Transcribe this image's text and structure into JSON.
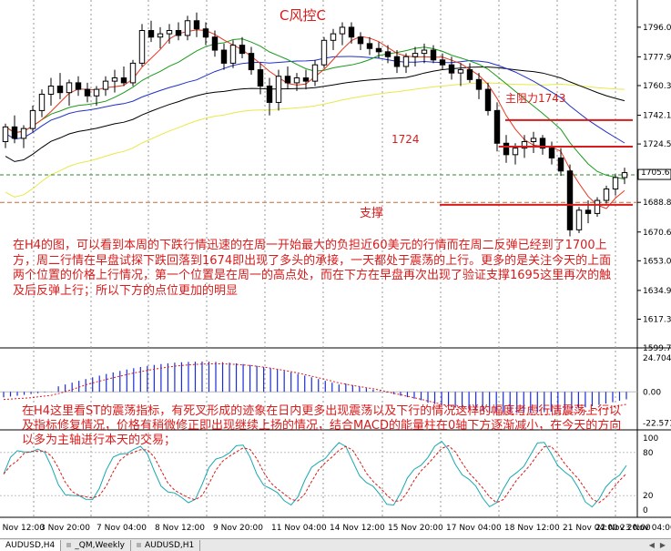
{
  "chart_data": [
    {
      "type": "candlestick",
      "symbol": "AUDUSD",
      "timeframe": "H4",
      "price_axis_ticks": [
        1796.05,
        1777.9,
        1760.3,
        1742.15,
        1724.55,
        1706.4,
        1688.8,
        1670.65,
        1653.05,
        1634.9,
        1617.3,
        1599.7
      ],
      "current_price": "1705.61",
      "ylim": [
        1599.7,
        1806.0
      ],
      "x_ticks": [
        "2 Nov 12:00",
        "3 Nov 20:00",
        "7 Nov 04:00",
        "8 Nov 12:00",
        "9 Nov 20:00",
        "11 Nov 04:00",
        "14 Nov 12:00",
        "15 Nov 20:00",
        "17 Nov 04:00",
        "18 Nov 12:00",
        "21 Nov 04:00",
        "22 Nov 20:00",
        "23 Nov 04:00"
      ],
      "candles": [
        [
          1726,
          1737,
          1722,
          1735
        ],
        [
          1735,
          1742,
          1725,
          1728
        ],
        [
          1728,
          1736,
          1722,
          1734
        ],
        [
          1734,
          1748,
          1732,
          1745
        ],
        [
          1745,
          1758,
          1741,
          1755
        ],
        [
          1755,
          1765,
          1748,
          1760
        ],
        [
          1760,
          1768,
          1752,
          1756
        ],
        [
          1756,
          1764,
          1748,
          1762
        ],
        [
          1762,
          1766,
          1754,
          1758
        ],
        [
          1758,
          1762,
          1750,
          1754
        ],
        [
          1754,
          1760,
          1748,
          1758
        ],
        [
          1758,
          1766,
          1754,
          1763
        ],
        [
          1763,
          1770,
          1756,
          1765
        ],
        [
          1765,
          1772,
          1760,
          1762
        ],
        [
          1762,
          1776,
          1760,
          1774
        ],
        [
          1774,
          1798,
          1772,
          1794
        ],
        [
          1794,
          1800,
          1787,
          1790
        ],
        [
          1790,
          1796,
          1783,
          1792
        ],
        [
          1792,
          1798,
          1786,
          1794
        ],
        [
          1794,
          1799,
          1788,
          1791
        ],
        [
          1791,
          1803,
          1788,
          1800
        ],
        [
          1800,
          1805,
          1790,
          1795
        ],
        [
          1795,
          1799,
          1785,
          1790
        ],
        [
          1790,
          1794,
          1778,
          1782
        ],
        [
          1782,
          1786,
          1770,
          1774
        ],
        [
          1774,
          1788,
          1771,
          1785
        ],
        [
          1785,
          1790,
          1777,
          1780
        ],
        [
          1780,
          1784,
          1767,
          1770
        ],
        [
          1770,
          1774,
          1755,
          1760
        ],
        [
          1760,
          1765,
          1742,
          1750
        ],
        [
          1750,
          1770,
          1745,
          1766
        ],
        [
          1766,
          1772,
          1758,
          1762
        ],
        [
          1762,
          1768,
          1757,
          1765
        ],
        [
          1765,
          1770,
          1758,
          1763
        ],
        [
          1763,
          1776,
          1760,
          1773
        ],
        [
          1773,
          1790,
          1771,
          1788
        ],
        [
          1788,
          1795,
          1782,
          1792
        ],
        [
          1792,
          1799,
          1785,
          1796
        ],
        [
          1796,
          1799,
          1786,
          1790
        ],
        [
          1790,
          1793,
          1782,
          1786
        ],
        [
          1786,
          1790,
          1779,
          1783
        ],
        [
          1783,
          1787,
          1777,
          1781
        ],
        [
          1781,
          1785,
          1774,
          1778
        ],
        [
          1778,
          1782,
          1768,
          1772
        ],
        [
          1772,
          1780,
          1768,
          1778
        ],
        [
          1778,
          1784,
          1772,
          1780
        ],
        [
          1780,
          1786,
          1774,
          1782
        ],
        [
          1782,
          1785,
          1774,
          1776
        ],
        [
          1776,
          1780,
          1770,
          1773
        ],
        [
          1773,
          1778,
          1764,
          1768
        ],
        [
          1768,
          1774,
          1760,
          1770
        ],
        [
          1770,
          1774,
          1762,
          1764
        ],
        [
          1764,
          1768,
          1752,
          1758
        ],
        [
          1758,
          1762,
          1742,
          1745
        ],
        [
          1745,
          1750,
          1720,
          1725
        ],
        [
          1725,
          1730,
          1713,
          1718
        ],
        [
          1718,
          1725,
          1712,
          1722
        ],
        [
          1722,
          1730,
          1716,
          1726
        ],
        [
          1726,
          1732,
          1719,
          1728
        ],
        [
          1728,
          1730,
          1718,
          1722
        ],
        [
          1722,
          1726,
          1712,
          1716
        ],
        [
          1716,
          1722,
          1705,
          1708
        ],
        [
          1708,
          1712,
          1668,
          1672
        ],
        [
          1672,
          1686,
          1670,
          1684
        ],
        [
          1684,
          1690,
          1676,
          1682
        ],
        [
          1682,
          1692,
          1680,
          1690
        ],
        [
          1690,
          1699,
          1688,
          1697
        ],
        [
          1697,
          1706,
          1693,
          1704
        ],
        [
          1704,
          1710,
          1700,
          1707
        ]
      ],
      "moving_averages": [
        {
          "color": "#e8361e",
          "label": "red"
        },
        {
          "color": "#1a9a1a",
          "label": "green"
        },
        {
          "color": "#2030c8",
          "label": "blue"
        },
        {
          "color": "#000000",
          "label": "black"
        },
        {
          "color": "#e6e84a",
          "label": "yellow"
        }
      ],
      "annotations": {
        "title": "C风控C",
        "resistance_label": "主阻力1743",
        "level_label": "1724",
        "support_label": "支撑",
        "commentary": "在H4的图，可以看到本周的下跌行情迅速的在周一开始最大的负担近60美元的行情而在周二反弹已经到了1700上方，周二行情在早盘试探下跌回落到1674即出现了多头的承接，一天都处于震荡的上行。更多的是关注今天的上面两个位置的价格上行情况，第一个位置是在周一的高点处，而在下方在早盘再次出现了验证支撑1695这里再次的触及后反弹上行；所以下方的点位更加的明显"
      }
    },
    {
      "type": "histogram",
      "name": "MACD",
      "axis_ticks": [
        "24.704",
        "0.00",
        "-22.571"
      ],
      "ylim": [
        -25.0,
        26.0
      ]
    },
    {
      "type": "line",
      "name": "Stochastic",
      "axis_ticks": [
        "100",
        "80",
        "20",
        "0"
      ],
      "ylim": [
        0,
        100
      ],
      "commentary": "在H4这里看ST的震荡指标，有死叉形成的迹象在日内更多出现震荡以及下行的情况这样的幅度考虑行情震荡上行以及指标修复情况，价格有稍微修正即出现继续上扬的情况，结合MACD的能量柱在0轴下方逐渐减小，在今天的方向以多为主轴进行本天的交易；"
    }
  ],
  "tabs": [
    "AUDUSD,H4",
    "_QM,Weekly",
    "AUDUSD,H1"
  ]
}
